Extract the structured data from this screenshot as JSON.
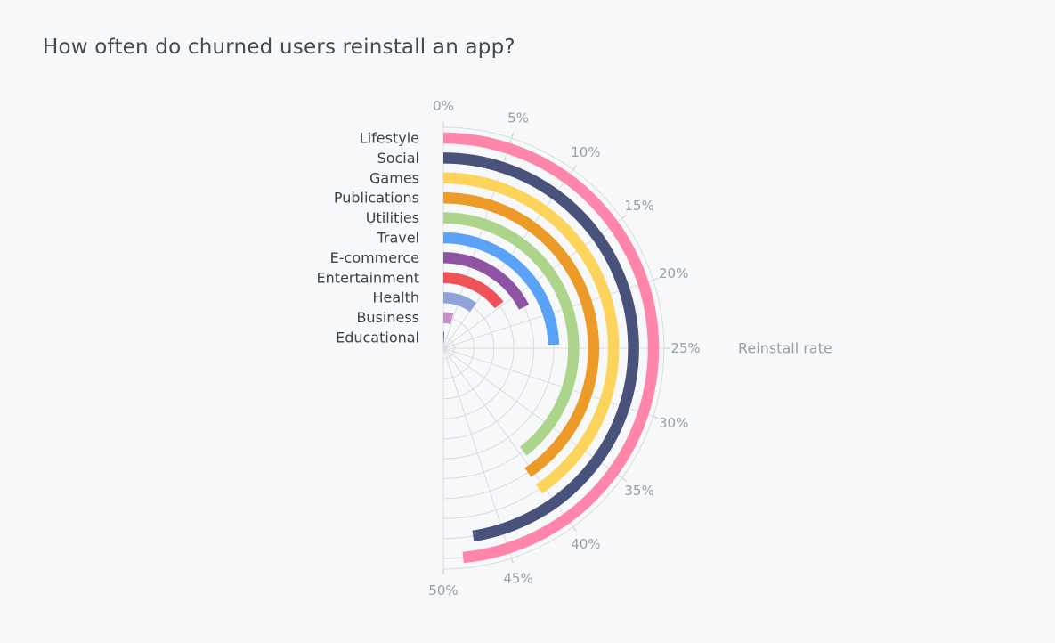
{
  "chart_data": {
    "type": "radial-bar",
    "title": "How often do churned users reinstall an app?",
    "axis_label": "Reinstall rate",
    "axis_range": [
      0,
      50
    ],
    "tick_values": [
      0,
      5,
      10,
      15,
      20,
      25,
      30,
      35,
      40,
      45,
      50
    ],
    "tick_labels": [
      "0%",
      "5%",
      "10%",
      "15%",
      "20%",
      "25%",
      "30%",
      "35%",
      "40%",
      "45%",
      "50%"
    ],
    "categories": [
      "Lifestyle",
      "Social",
      "Games",
      "Publications",
      "Utilities",
      "Travel",
      "E-commerce",
      "Entertainment",
      "Health",
      "Business",
      "Educational"
    ],
    "values": [
      48.5,
      47.5,
      40.5,
      40.5,
      39.5,
      24.5,
      17.5,
      14.5,
      10.0,
      4.5,
      0.8
    ],
    "colors": [
      "#ff85aa",
      "#48527a",
      "#fcd35b",
      "#ec9a28",
      "#acd58b",
      "#59a2f5",
      "#8f53a3",
      "#ef5358",
      "#8fa3d6",
      "#c68fc6",
      "#2f45a8"
    ],
    "grid": true,
    "legend": "none"
  }
}
